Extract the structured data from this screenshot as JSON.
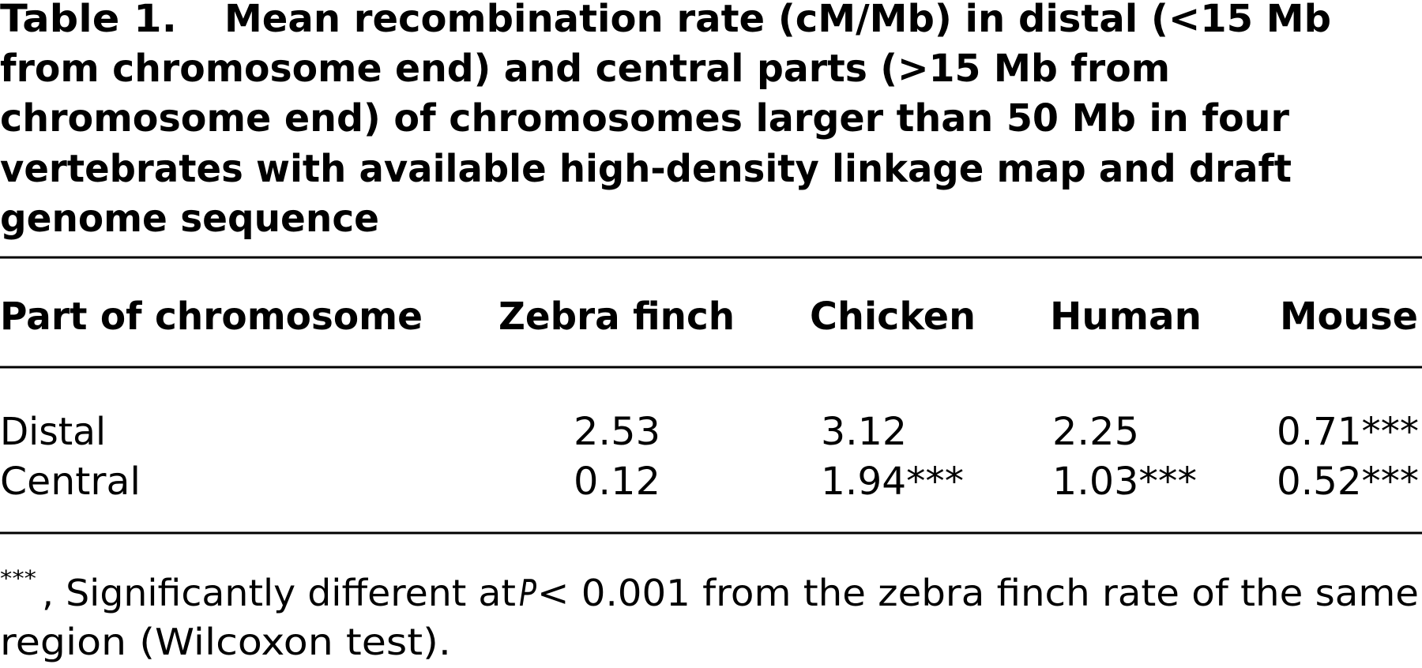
{
  "caption": {
    "label": "Table 1.",
    "title_lines": [
      "Mean recombination rate (cM/Mb) in distal (<15 Mb",
      "from chromosome end) and central parts (>15 Mb from",
      "chromosome end) of chromosomes larger than 50 Mb in four",
      "vertebrates with available high-density linkage map and draft",
      "genome sequence"
    ]
  },
  "table": {
    "header": [
      "Part of chromosome",
      "Zebra finch",
      "Chicken",
      "Human",
      "Mouse"
    ],
    "rows": [
      [
        "Distal",
        "2.53",
        "3.12",
        "2.25",
        "0.71***"
      ],
      [
        "Central",
        "0.12",
        "1.94***",
        "1.03***",
        "0.52***"
      ]
    ]
  },
  "footnote": {
    "marker": "***",
    "line1_parts": [
      ", Significantly different at ",
      "P",
      " < 0.001 from the zebra finch rate of the same"
    ],
    "line2": "region (Wilcoxon test)."
  }
}
